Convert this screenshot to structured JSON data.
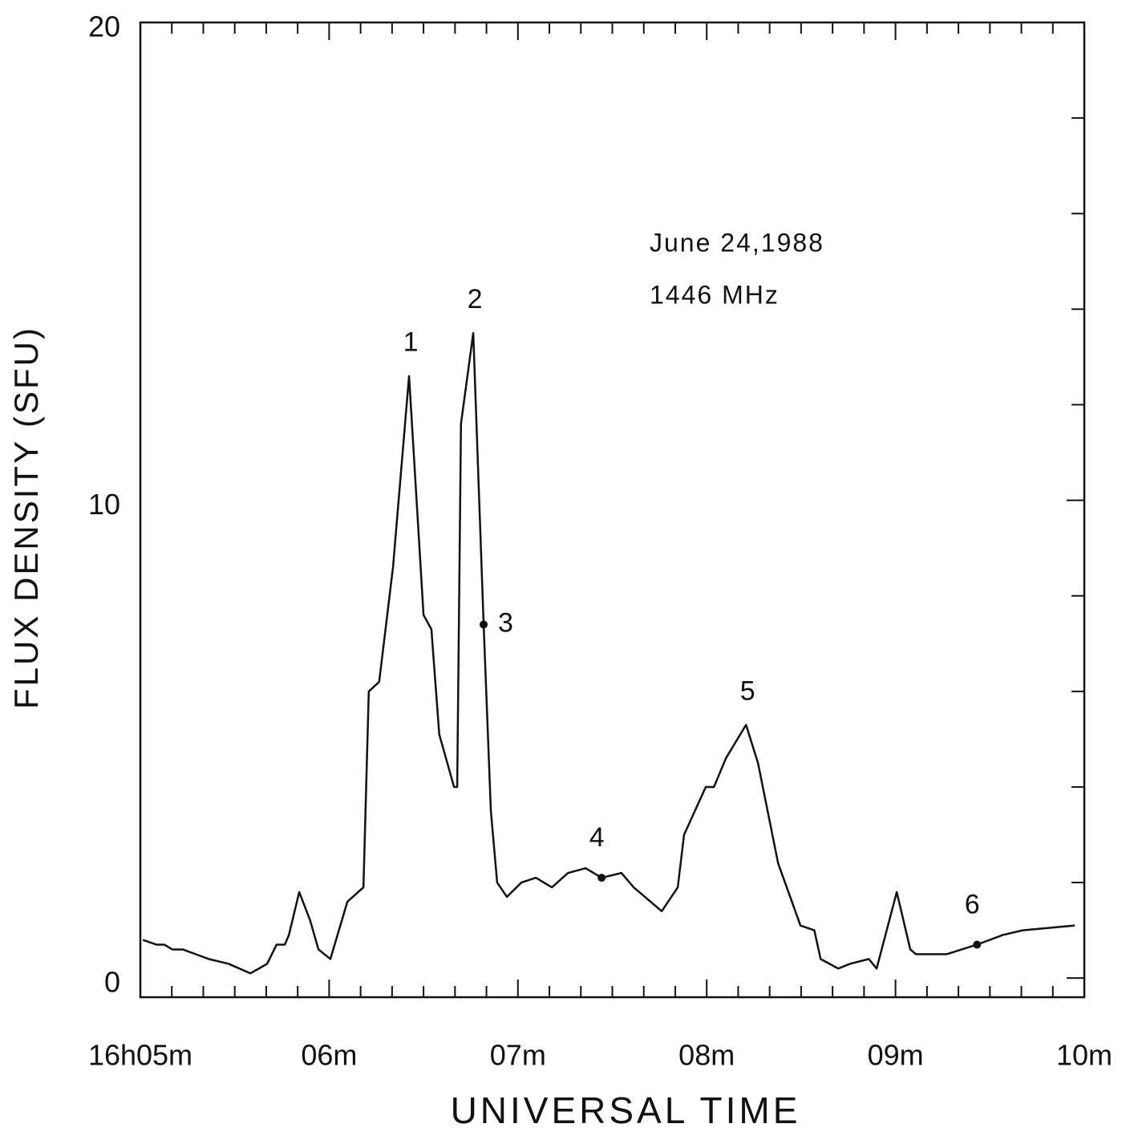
{
  "chart_data": {
    "type": "line",
    "title": "June 24,1988",
    "subtitle": "1446 MHz",
    "x_label": "UNIVERSAL TIME",
    "y_label": "FLUX DENSITY (SFU)",
    "xlim": [
      0,
      300
    ],
    "xticks": [
      {
        "value": 0,
        "label": "16h05m"
      },
      {
        "value": 60,
        "label": "06m"
      },
      {
        "value": 120,
        "label": "07m"
      },
      {
        "value": 180,
        "label": "08m"
      },
      {
        "value": 240,
        "label": "09m"
      },
      {
        "value": 300,
        "label": "10m"
      }
    ],
    "xminorticks": [
      10,
      20,
      30,
      40,
      50,
      70,
      80,
      90,
      100,
      110,
      130,
      140,
      150,
      160,
      170,
      190,
      200,
      210,
      220,
      230,
      250,
      260,
      270,
      280,
      290
    ],
    "ylim": [
      -0.4,
      20
    ],
    "yticks": [
      0,
      10,
      20
    ],
    "yminorticks": [
      2,
      4,
      6,
      8,
      12,
      14,
      16,
      18
    ],
    "color": "#111111",
    "x": [
      0.8,
      5.1,
      7.6,
      10.2,
      13.5,
      21.7,
      28,
      35,
      37.7,
      40.3,
      43.3,
      45.9,
      47.2,
      50.5,
      54,
      56.6,
      60.4,
      65.8,
      70.9,
      72.6,
      75.9,
      80.3,
      85.4,
      90,
      92.5,
      95,
      99.7,
      100.7,
      101.9,
      105.8,
      109.1,
      111.4,
      113.4,
      116.5,
      121.1,
      125.7,
      130.8,
      135.9,
      141.5,
      146.6,
      152.9,
      156.8,
      165.7,
      170.8,
      172.8,
      179.7,
      182.3,
      186.1,
      192.5,
      196.3,
      202.7,
      209.8,
      214.2,
      216.2,
      221.8,
      225.6,
      231.5,
      234,
      240.4,
      244.7,
      246.5,
      256.2,
      265.9,
      274,
      280.4,
      297
    ],
    "values": [
      0.8,
      0.7,
      0.7,
      0.6,
      0.6,
      0.4,
      0.3,
      0.1,
      0.2,
      0.3,
      0.7,
      0.7,
      0.9,
      1.8,
      1.2,
      0.6,
      0.4,
      1.6,
      1.9,
      6.0,
      6.2,
      8.6,
      12.6,
      7.6,
      7.3,
      5.1,
      4.0,
      4.0,
      11.6,
      13.5,
      7.4,
      3.5,
      2.0,
      1.7,
      2.0,
      2.1,
      1.9,
      2.2,
      2.3,
      2.1,
      2.2,
      1.9,
      1.4,
      1.9,
      3.0,
      4.0,
      4.0,
      4.6,
      5.3,
      4.5,
      2.4,
      1.1,
      1.0,
      0.4,
      0.2,
      0.3,
      0.4,
      0.2,
      1.8,
      0.6,
      0.5,
      0.5,
      0.7,
      0.9,
      1.0,
      1.1
    ],
    "annotations": [
      {
        "text": "1",
        "x": 85.4,
        "y": 12.6
      },
      {
        "text": "2",
        "x": 105.8,
        "y": 13.5
      },
      {
        "text": "3",
        "x": 109.1,
        "y": 7.4,
        "point": true
      },
      {
        "text": "4",
        "x": 146.6,
        "y": 2.1,
        "point": true
      },
      {
        "text": "5",
        "x": 192.5,
        "y": 5.3
      },
      {
        "text": "6",
        "x": 265.9,
        "y": 0.7,
        "point": true
      }
    ]
  }
}
